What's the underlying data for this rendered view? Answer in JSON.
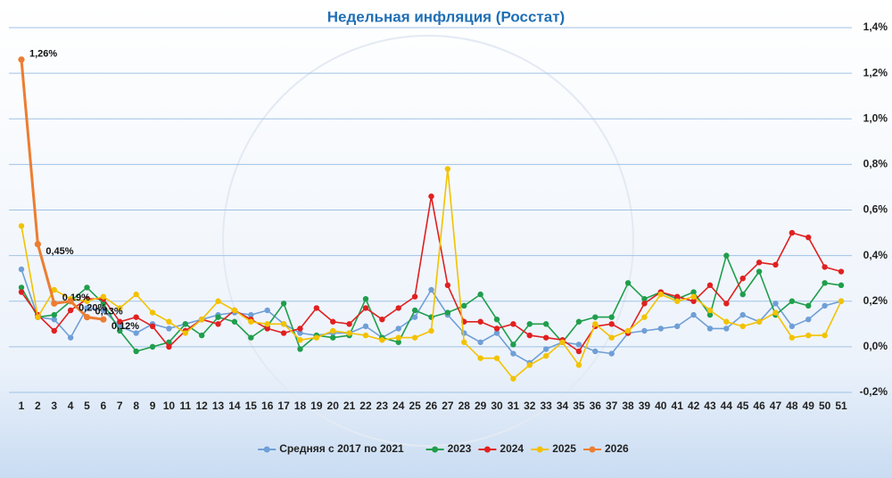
{
  "chart_data": {
    "type": "line",
    "title": "Недельная инфляция (Росстат)",
    "x": [
      1,
      2,
      3,
      4,
      5,
      6,
      7,
      8,
      9,
      10,
      11,
      12,
      13,
      14,
      15,
      16,
      17,
      18,
      19,
      20,
      21,
      22,
      23,
      24,
      25,
      26,
      27,
      28,
      29,
      30,
      31,
      32,
      33,
      34,
      35,
      36,
      37,
      38,
      39,
      40,
      41,
      42,
      43,
      44,
      45,
      46,
      47,
      48,
      49,
      50,
      51
    ],
    "xlim": [
      1,
      51
    ],
    "ylim": [
      -0.2,
      1.4
    ],
    "yticks": [
      {
        "value": -0.2,
        "label": "-0,2%"
      },
      {
        "value": 0,
        "label": "0,0%"
      },
      {
        "value": 0.2,
        "label": "0,2%"
      },
      {
        "value": 0.4,
        "label": "0,4%"
      },
      {
        "value": 0.6,
        "label": "0,6%"
      },
      {
        "value": 0.8,
        "label": "0,8%"
      },
      {
        "value": 1.0,
        "label": "1,0%"
      },
      {
        "value": 1.2,
        "label": "1,2%"
      },
      {
        "value": 1.4,
        "label": "1,4%"
      }
    ],
    "grid": true,
    "legend": "bottom",
    "series": [
      {
        "name": "Средняя с 2017 по 2021",
        "color": "#6f9fd6",
        "values": [
          0.34,
          0.13,
          0.12,
          0.04,
          0.17,
          0.16,
          0.09,
          0.06,
          0.1,
          0.08,
          0.1,
          0.12,
          0.14,
          0.15,
          0.14,
          0.16,
          0.1,
          0.06,
          0.05,
          0.06,
          0.06,
          0.09,
          0.04,
          0.08,
          0.13,
          0.25,
          0.14,
          0.06,
          0.02,
          0.06,
          -0.03,
          -0.07,
          -0.01,
          0.02,
          0.01,
          -0.02,
          -0.03,
          0.06,
          0.07,
          0.08,
          0.09,
          0.14,
          0.08,
          0.08,
          0.14,
          0.11,
          0.19,
          0.09,
          0.12,
          0.18,
          0.2
        ]
      },
      {
        "name": "2023",
        "color": "#1f9e4c",
        "values": [
          0.26,
          0.13,
          0.14,
          0.2,
          0.26,
          0.19,
          0.07,
          -0.02,
          0.0,
          0.02,
          0.1,
          0.05,
          0.13,
          0.11,
          0.04,
          0.09,
          0.19,
          -0.01,
          0.05,
          0.04,
          0.05,
          0.21,
          0.04,
          0.02,
          0.16,
          0.13,
          0.15,
          0.18,
          0.23,
          0.12,
          0.01,
          0.1,
          0.1,
          0.02,
          0.11,
          0.13,
          0.13,
          0.28,
          0.21,
          0.24,
          0.21,
          0.24,
          0.14,
          0.4,
          0.23,
          0.33,
          0.14,
          0.2,
          0.18,
          0.28,
          0.27
        ]
      },
      {
        "name": "2024",
        "color": "#e02020",
        "values": [
          0.24,
          0.14,
          0.07,
          0.16,
          0.21,
          0.21,
          0.11,
          0.13,
          0.09,
          0.0,
          0.07,
          0.12,
          0.1,
          0.16,
          0.12,
          0.08,
          0.06,
          0.08,
          0.17,
          0.11,
          0.1,
          0.17,
          0.12,
          0.17,
          0.22,
          0.66,
          0.27,
          0.11,
          0.11,
          0.08,
          0.1,
          0.05,
          0.04,
          0.03,
          -0.02,
          0.09,
          0.1,
          0.06,
          0.19,
          0.24,
          0.22,
          0.2,
          0.27,
          0.19,
          0.3,
          0.37,
          0.36,
          0.5,
          0.48,
          0.35,
          0.33
        ]
      },
      {
        "name": "2025",
        "color": "#f2c200",
        "values": [
          0.53,
          0.13,
          0.25,
          0.21,
          0.2,
          0.22,
          0.17,
          0.23,
          0.15,
          0.11,
          0.06,
          0.12,
          0.2,
          0.16,
          0.11,
          0.1,
          0.1,
          0.03,
          0.04,
          0.07,
          0.06,
          0.05,
          0.03,
          0.04,
          0.04,
          0.07,
          0.78,
          0.02,
          -0.05,
          -0.05,
          -0.14,
          -0.08,
          -0.04,
          0.02,
          -0.08,
          0.1,
          0.04,
          0.07,
          0.13,
          0.23,
          0.2,
          0.22,
          0.16,
          0.11,
          0.09,
          0.11,
          0.15,
          0.04,
          0.05,
          0.05,
          0.2
        ]
      },
      {
        "name": "2026",
        "color": "#ec7d31",
        "values": [
          1.26,
          0.45,
          0.19,
          0.2,
          0.13,
          0.12,
          null,
          null,
          null,
          null,
          null,
          null,
          null,
          null,
          null,
          null,
          null,
          null,
          null,
          null,
          null,
          null,
          null,
          null,
          null,
          null,
          null,
          null,
          null,
          null,
          null,
          null,
          null,
          null,
          null,
          null,
          null,
          null,
          null,
          null,
          null,
          null,
          null,
          null,
          null,
          null,
          null,
          null,
          null,
          null,
          null
        ],
        "value_labels": [
          "1,26%",
          "0,45%",
          "0,19%",
          "0,20%",
          "0,13%",
          "0,12%",
          null,
          null,
          null,
          null,
          null,
          null,
          null,
          null,
          null,
          null,
          null,
          null,
          null,
          null,
          null,
          null,
          null,
          null,
          null,
          null,
          null,
          null,
          null,
          null,
          null,
          null,
          null,
          null,
          null,
          null,
          null,
          null,
          null,
          null,
          null,
          null,
          null,
          null,
          null,
          null,
          null,
          null,
          null,
          null,
          null
        ]
      }
    ]
  }
}
